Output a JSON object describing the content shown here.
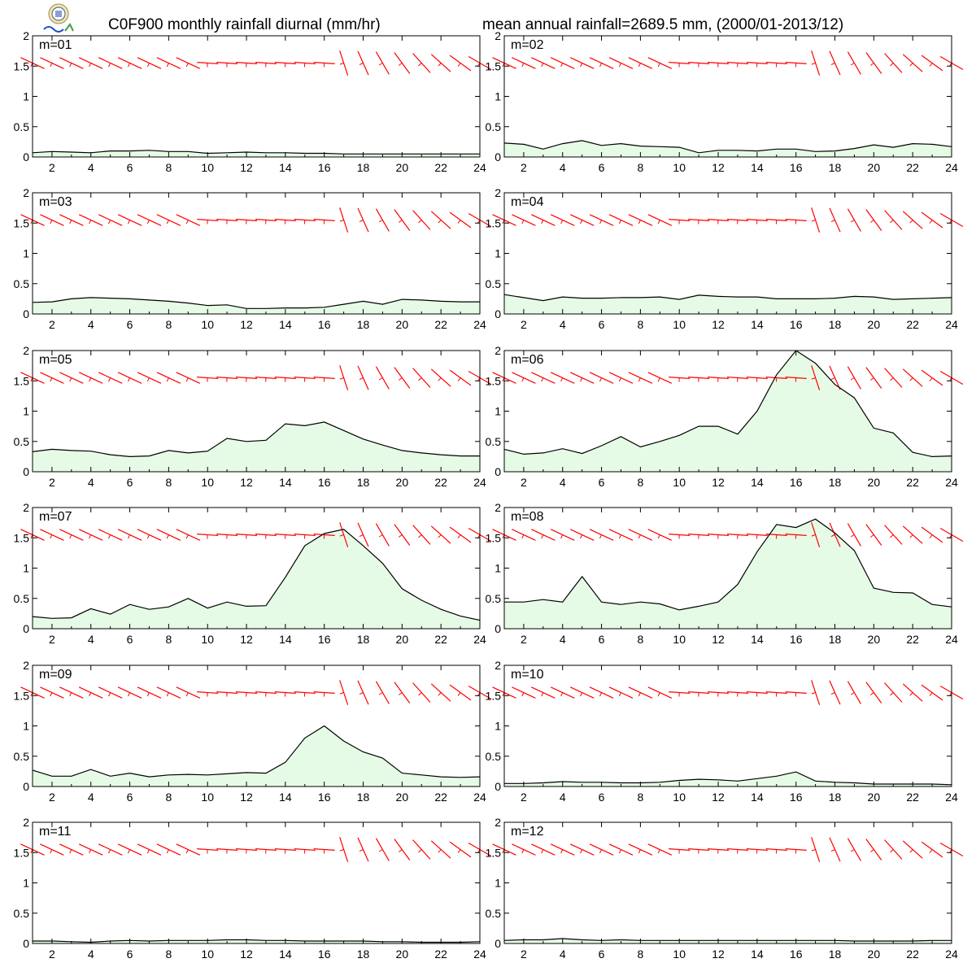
{
  "header": {
    "title_left": "C0F900 monthly rainfall diurnal (mm/hr)",
    "title_right": "mean annual rainfall=2689.5 mm, (2000/01-2013/12)"
  },
  "colors": {
    "area_fill": "#e6fbe6",
    "line": "#000000",
    "wind": "#ff0000"
  },
  "chart_data": {
    "type": "area",
    "x": [
      1,
      2,
      3,
      4,
      5,
      6,
      7,
      8,
      9,
      10,
      11,
      12,
      13,
      14,
      15,
      16,
      17,
      18,
      19,
      20,
      21,
      22,
      23,
      24
    ],
    "xticks": [
      2,
      4,
      6,
      8,
      10,
      12,
      14,
      16,
      18,
      20,
      22,
      24
    ],
    "yticks": [
      "0",
      "0.5",
      "1",
      "1.5",
      "2"
    ],
    "ylim": [
      0,
      2
    ],
    "xlim": [
      1,
      24
    ],
    "panels": [
      {
        "label": "m=01",
        "values": [
          0.07,
          0.09,
          0.08,
          0.07,
          0.1,
          0.1,
          0.11,
          0.09,
          0.09,
          0.06,
          0.07,
          0.08,
          0.07,
          0.07,
          0.06,
          0.06,
          0.05,
          0.05,
          0.05,
          0.05,
          0.05,
          0.05,
          0.05,
          0.05
        ]
      },
      {
        "label": "m=02",
        "values": [
          0.23,
          0.21,
          0.13,
          0.22,
          0.27,
          0.19,
          0.22,
          0.18,
          0.17,
          0.16,
          0.07,
          0.11,
          0.11,
          0.1,
          0.13,
          0.13,
          0.09,
          0.1,
          0.14,
          0.2,
          0.16,
          0.22,
          0.21,
          0.17
        ]
      },
      {
        "label": "m=03",
        "values": [
          0.19,
          0.2,
          0.25,
          0.27,
          0.26,
          0.25,
          0.23,
          0.21,
          0.18,
          0.14,
          0.15,
          0.09,
          0.09,
          0.1,
          0.1,
          0.11,
          0.16,
          0.21,
          0.16,
          0.24,
          0.23,
          0.21,
          0.2,
          0.2
        ]
      },
      {
        "label": "m=04",
        "values": [
          0.32,
          0.27,
          0.22,
          0.28,
          0.26,
          0.26,
          0.27,
          0.27,
          0.28,
          0.24,
          0.31,
          0.29,
          0.28,
          0.28,
          0.25,
          0.25,
          0.25,
          0.26,
          0.29,
          0.28,
          0.24,
          0.25,
          0.26,
          0.27
        ]
      },
      {
        "label": "m=05",
        "values": [
          0.33,
          0.37,
          0.35,
          0.34,
          0.28,
          0.25,
          0.26,
          0.35,
          0.31,
          0.34,
          0.55,
          0.5,
          0.52,
          0.79,
          0.76,
          0.82,
          0.68,
          0.54,
          0.44,
          0.35,
          0.31,
          0.28,
          0.26,
          0.26
        ]
      },
      {
        "label": "m=06",
        "values": [
          0.37,
          0.29,
          0.31,
          0.38,
          0.3,
          0.43,
          0.58,
          0.41,
          0.5,
          0.6,
          0.75,
          0.75,
          0.62,
          1.0,
          1.6,
          2.0,
          1.79,
          1.44,
          1.22,
          0.72,
          0.64,
          0.32,
          0.25,
          0.26
        ]
      },
      {
        "label": "m=07",
        "values": [
          0.2,
          0.17,
          0.18,
          0.33,
          0.24,
          0.4,
          0.32,
          0.36,
          0.5,
          0.34,
          0.44,
          0.37,
          0.38,
          0.85,
          1.37,
          1.57,
          1.64,
          1.37,
          1.08,
          0.66,
          0.47,
          0.32,
          0.21,
          0.14
        ]
      },
      {
        "label": "m=08",
        "values": [
          0.44,
          0.44,
          0.48,
          0.44,
          0.86,
          0.44,
          0.4,
          0.44,
          0.41,
          0.31,
          0.37,
          0.44,
          0.73,
          1.27,
          1.72,
          1.67,
          1.81,
          1.58,
          1.29,
          0.67,
          0.6,
          0.59,
          0.4,
          0.36
        ]
      },
      {
        "label": "m=09",
        "values": [
          0.27,
          0.17,
          0.17,
          0.28,
          0.17,
          0.22,
          0.16,
          0.19,
          0.2,
          0.19,
          0.21,
          0.23,
          0.22,
          0.4,
          0.8,
          1.0,
          0.75,
          0.57,
          0.47,
          0.22,
          0.19,
          0.16,
          0.15,
          0.16
        ]
      },
      {
        "label": "m=10",
        "values": [
          0.05,
          0.05,
          0.06,
          0.08,
          0.07,
          0.07,
          0.06,
          0.06,
          0.07,
          0.1,
          0.12,
          0.11,
          0.09,
          0.13,
          0.17,
          0.24,
          0.09,
          0.07,
          0.06,
          0.04,
          0.04,
          0.04,
          0.04,
          0.03
        ]
      },
      {
        "label": "m=11",
        "values": [
          0.04,
          0.04,
          0.03,
          0.02,
          0.04,
          0.05,
          0.04,
          0.05,
          0.05,
          0.05,
          0.06,
          0.06,
          0.05,
          0.05,
          0.04,
          0.04,
          0.04,
          0.04,
          0.03,
          0.03,
          0.02,
          0.02,
          0.02,
          0.03
        ]
      },
      {
        "label": "m=12",
        "values": [
          0.05,
          0.06,
          0.06,
          0.08,
          0.06,
          0.05,
          0.06,
          0.05,
          0.05,
          0.05,
          0.05,
          0.05,
          0.05,
          0.05,
          0.05,
          0.05,
          0.05,
          0.05,
          0.04,
          0.04,
          0.04,
          0.04,
          0.05,
          0.05
        ]
      }
    ]
  }
}
